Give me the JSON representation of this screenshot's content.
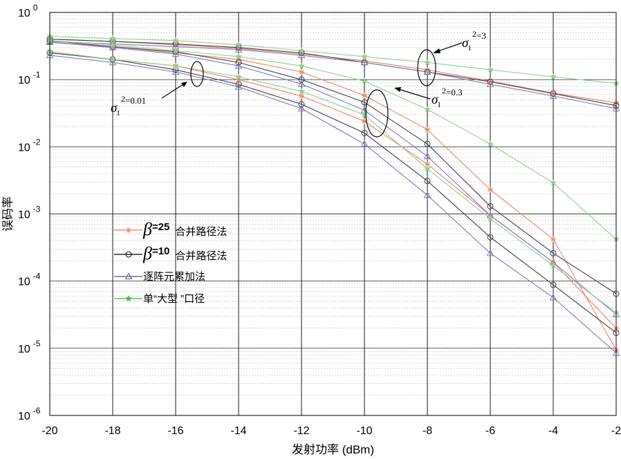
{
  "chart_data": {
    "type": "line",
    "xlabel": "发射功率 (dBm)",
    "ylabel": "误码率",
    "x_ticks": [
      -20,
      -18,
      -16,
      -14,
      -12,
      -10,
      -8,
      -6,
      -4,
      -2
    ],
    "xlim": [
      -20,
      -2
    ],
    "y_scale": "log",
    "ylim": [
      1e-06,
      1
    ],
    "y_ticks": [
      {
        "value": 1,
        "base": "10",
        "exp": "0"
      },
      {
        "value": 0.1,
        "base": "10",
        "exp": "-1"
      },
      {
        "value": 0.01,
        "base": "10",
        "exp": "-2"
      },
      {
        "value": 0.001,
        "base": "10",
        "exp": "-3"
      },
      {
        "value": 0.0001,
        "base": "10",
        "exp": "-4"
      },
      {
        "value": 1e-05,
        "base": "10",
        "exp": "-5"
      },
      {
        "value": 1e-06,
        "base": "10",
        "exp": "-6"
      }
    ],
    "grid": true,
    "x": [
      -20,
      -18,
      -16,
      -14,
      -12,
      -10,
      -8,
      -6,
      -4,
      -2
    ],
    "series": [
      {
        "group": "beta25",
        "sigma": "3",
        "color": "#f08060",
        "marker": "star",
        "values": [
          0.4,
          0.37,
          0.33,
          0.29,
          0.24,
          0.19,
          0.14,
          0.095,
          0.063,
          0.045
        ]
      },
      {
        "group": "beta25",
        "sigma": "0.3",
        "color": "#f08060",
        "marker": "star",
        "values": [
          0.26,
          0.2,
          0.16,
          0.1,
          0.057,
          0.024,
          0.0055,
          0.00095,
          0.00019,
          2e-05
        ]
      },
      {
        "group": "beta25",
        "sigma": "0.01",
        "color": "#f08060",
        "marker": "star",
        "values": [
          0.36,
          0.31,
          0.25,
          0.2,
          0.13,
          0.058,
          0.018,
          0.0023,
          0.00042,
          9.5e-06
        ]
      },
      {
        "group": "beta10",
        "sigma": "3",
        "color": "#404040",
        "marker": "circle",
        "values": [
          0.4,
          0.37,
          0.34,
          0.3,
          0.25,
          0.18,
          0.13,
          0.093,
          0.062,
          0.041
        ]
      },
      {
        "group": "beta10",
        "sigma": "0.3",
        "color": "#404040",
        "marker": "circle",
        "values": [
          0.38,
          0.31,
          0.26,
          0.18,
          0.1,
          0.046,
          0.011,
          0.0013,
          0.00026,
          6.5e-05
        ]
      },
      {
        "group": "beta10",
        "sigma": "0.01",
        "color": "#404040",
        "marker": "circle",
        "values": [
          0.25,
          0.2,
          0.14,
          0.085,
          0.043,
          0.016,
          0.0031,
          0.00045,
          8.8e-05,
          1.7e-05
        ]
      },
      {
        "group": "element",
        "sigma": "3",
        "color": "#7a7ac0",
        "marker": "triangle",
        "values": [
          0.37,
          0.34,
          0.31,
          0.28,
          0.23,
          0.18,
          0.13,
          0.085,
          0.057,
          0.037
        ]
      },
      {
        "group": "element",
        "sigma": "0.3",
        "color": "#7a7ac0",
        "marker": "triangle",
        "values": [
          0.36,
          0.3,
          0.24,
          0.16,
          0.086,
          0.035,
          0.0072,
          0.00095,
          0.00019,
          3.2e-05
        ]
      },
      {
        "group": "element",
        "sigma": "0.01",
        "color": "#7a7ac0",
        "marker": "triangle",
        "values": [
          0.23,
          0.18,
          0.13,
          0.078,
          0.037,
          0.011,
          0.0019,
          0.00026,
          5.7e-05,
          8.5e-06
        ]
      },
      {
        "group": "single",
        "sigma": "3",
        "color": "#90d090",
        "marker": "star5",
        "values": [
          0.44,
          0.41,
          0.38,
          0.33,
          0.27,
          0.22,
          0.18,
          0.14,
          0.11,
          0.088
        ]
      },
      {
        "group": "single",
        "sigma": "0.3",
        "color": "#90d090",
        "marker": "star5",
        "values": [
          0.38,
          0.33,
          0.27,
          0.22,
          0.16,
          0.095,
          0.036,
          0.011,
          0.0029,
          0.00042
        ]
      },
      {
        "group": "single",
        "sigma": "0.01",
        "color": "#90d090",
        "marker": "star5",
        "values": [
          0.26,
          0.2,
          0.16,
          0.11,
          0.067,
          0.03,
          0.0047,
          0.00085,
          0.00017,
          3.4e-05
        ]
      }
    ],
    "legend": {
      "placement": "center-left",
      "entries": [
        {
          "group": "beta25",
          "beta": "β",
          "eq": "=25",
          "text": "合并路径法",
          "color": "#f08060",
          "marker": "star"
        },
        {
          "group": "beta10",
          "beta": "β",
          "eq": "=10",
          "text": "合并路径法",
          "color": "#000000",
          "marker": "circle"
        },
        {
          "group": "element",
          "text": "逐阵元累加法",
          "color": "#5050a0",
          "marker": "triangle"
        },
        {
          "group": "single",
          "text": "单“大型 ”口径",
          "color": "#50b050",
          "marker": "star5"
        }
      ]
    },
    "annotations": [
      {
        "sigma": "σ",
        "sub": "I",
        "sup": "2",
        "value": "=3",
        "at_x": -8.3,
        "at_y": 0.16
      },
      {
        "sigma": "σ",
        "sub": "I",
        "sup": "2",
        "value": "=0.3",
        "at_x": -9.8,
        "at_y": 0.035
      },
      {
        "sigma": "σ",
        "sub": "I",
        "sup": "2",
        "value": "=0.01",
        "at_x": -15.4,
        "at_y": 0.12
      }
    ]
  }
}
